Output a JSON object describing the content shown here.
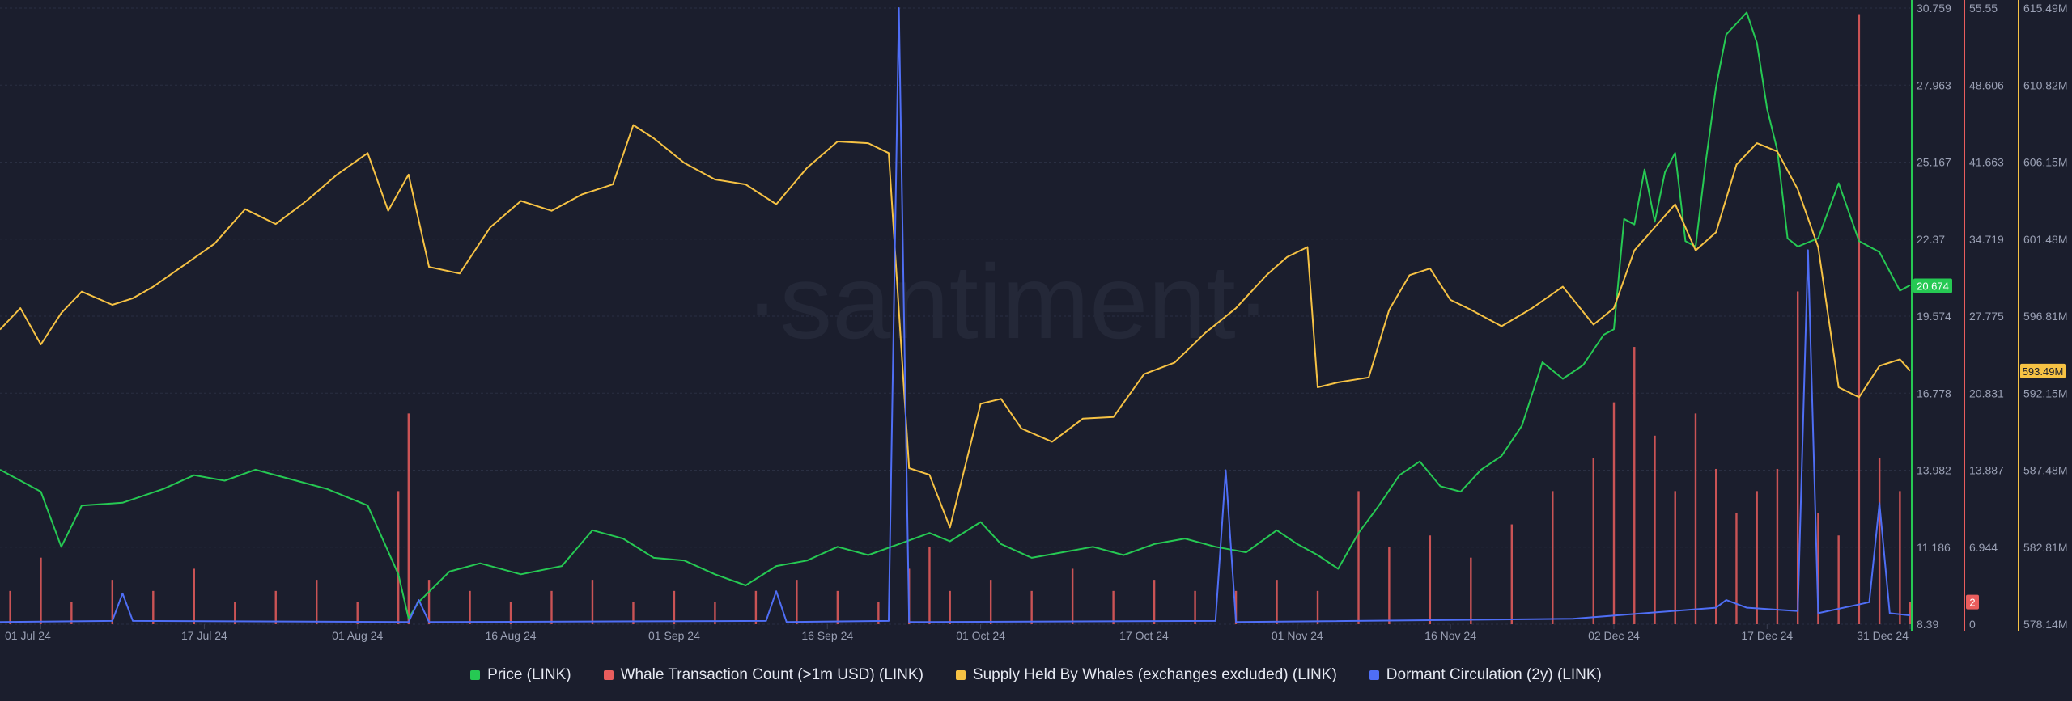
{
  "watermark": "·santiment·",
  "chart_data": {
    "type": "line",
    "x_range": [
      "2024-06-27",
      "2024-12-31"
    ],
    "x_ticks": [
      "01 Jul 24",
      "17 Jul 24",
      "01 Aug 24",
      "16 Aug 24",
      "01 Sep 24",
      "16 Sep 24",
      "01 Oct 24",
      "17 Oct 24",
      "01 Nov 24",
      "16 Nov 24",
      "02 Dec 24",
      "17 Dec 24",
      "31 Dec 24"
    ],
    "grid": true,
    "legend_position": "bottom",
    "axes": {
      "price": {
        "color": "#26c953",
        "range": [
          8.39,
          30.759
        ],
        "ticks": [
          "30.759",
          "27.963",
          "25.167",
          "22.37",
          "19.574",
          "16.778",
          "13.982",
          "11.186",
          "8.39"
        ],
        "current_label": "20.674",
        "current_value": 20.674
      },
      "whale_tx": {
        "color": "#e95d5d",
        "range": [
          0,
          55.55
        ],
        "ticks": [
          "55.55",
          "48.606",
          "41.663",
          "34.719",
          "27.775",
          "20.831",
          "13.887",
          "6.944",
          "0"
        ],
        "current_label": "2",
        "current_value": 2
      },
      "supply": {
        "color": "#f6c244",
        "range": [
          578.14,
          615.49
        ],
        "ticks": [
          "615.49M",
          "610.82M",
          "606.15M",
          "601.48M",
          "596.81M",
          "592.15M",
          "587.48M",
          "582.81M",
          "578.14M"
        ],
        "current_label": "593.49M",
        "current_value": 593.49
      }
    },
    "series": [
      {
        "name": "Price (LINK)",
        "color": "#26c953",
        "axis": "price",
        "style": "line",
        "points": [
          [
            "2024-06-27",
            14.0
          ],
          [
            "2024-07-01",
            13.2
          ],
          [
            "2024-07-03",
            11.2
          ],
          [
            "2024-07-05",
            12.7
          ],
          [
            "2024-07-09",
            12.8
          ],
          [
            "2024-07-13",
            13.3
          ],
          [
            "2024-07-16",
            13.8
          ],
          [
            "2024-07-19",
            13.6
          ],
          [
            "2024-07-22",
            14.0
          ],
          [
            "2024-07-26",
            13.6
          ],
          [
            "2024-07-29",
            13.3
          ],
          [
            "2024-08-02",
            12.7
          ],
          [
            "2024-08-05",
            10.2
          ],
          [
            "2024-08-06",
            8.6
          ],
          [
            "2024-08-07",
            9.2
          ],
          [
            "2024-08-10",
            10.3
          ],
          [
            "2024-08-13",
            10.6
          ],
          [
            "2024-08-17",
            10.2
          ],
          [
            "2024-08-21",
            10.5
          ],
          [
            "2024-08-24",
            11.8
          ],
          [
            "2024-08-27",
            11.5
          ],
          [
            "2024-08-30",
            10.8
          ],
          [
            "2024-09-02",
            10.7
          ],
          [
            "2024-09-05",
            10.2
          ],
          [
            "2024-09-08",
            9.8
          ],
          [
            "2024-09-11",
            10.5
          ],
          [
            "2024-09-14",
            10.7
          ],
          [
            "2024-09-17",
            11.2
          ],
          [
            "2024-09-20",
            10.9
          ],
          [
            "2024-09-23",
            11.3
          ],
          [
            "2024-09-26",
            11.7
          ],
          [
            "2024-09-28",
            11.4
          ],
          [
            "2024-10-01",
            12.1
          ],
          [
            "2024-10-03",
            11.3
          ],
          [
            "2024-10-06",
            10.8
          ],
          [
            "2024-10-09",
            11.0
          ],
          [
            "2024-10-12",
            11.2
          ],
          [
            "2024-10-15",
            10.9
          ],
          [
            "2024-10-18",
            11.3
          ],
          [
            "2024-10-21",
            11.5
          ],
          [
            "2024-10-24",
            11.2
          ],
          [
            "2024-10-27",
            11.0
          ],
          [
            "2024-10-30",
            11.8
          ],
          [
            "2024-11-01",
            11.3
          ],
          [
            "2024-11-03",
            10.9
          ],
          [
            "2024-11-05",
            10.4
          ],
          [
            "2024-11-07",
            11.7
          ],
          [
            "2024-11-09",
            12.7
          ],
          [
            "2024-11-11",
            13.8
          ],
          [
            "2024-11-13",
            14.3
          ],
          [
            "2024-11-15",
            13.4
          ],
          [
            "2024-11-17",
            13.2
          ],
          [
            "2024-11-19",
            14.0
          ],
          [
            "2024-11-21",
            14.5
          ],
          [
            "2024-11-23",
            15.6
          ],
          [
            "2024-11-25",
            17.9
          ],
          [
            "2024-11-27",
            17.3
          ],
          [
            "2024-11-29",
            17.8
          ],
          [
            "2024-12-01",
            18.9
          ],
          [
            "2024-12-02",
            19.1
          ],
          [
            "2024-12-03",
            23.1
          ],
          [
            "2024-12-04",
            22.9
          ],
          [
            "2024-12-05",
            24.9
          ],
          [
            "2024-12-06",
            23.0
          ],
          [
            "2024-12-07",
            24.8
          ],
          [
            "2024-12-08",
            25.5
          ],
          [
            "2024-12-09",
            22.3
          ],
          [
            "2024-12-10",
            22.1
          ],
          [
            "2024-12-11",
            25.2
          ],
          [
            "2024-12-12",
            27.9
          ],
          [
            "2024-12-13",
            29.8
          ],
          [
            "2024-12-14",
            30.2
          ],
          [
            "2024-12-15",
            30.6
          ],
          [
            "2024-12-16",
            29.5
          ],
          [
            "2024-12-17",
            27.1
          ],
          [
            "2024-12-18",
            25.6
          ],
          [
            "2024-12-19",
            22.4
          ],
          [
            "2024-12-20",
            22.1
          ],
          [
            "2024-12-22",
            22.4
          ],
          [
            "2024-12-24",
            24.4
          ],
          [
            "2024-12-26",
            22.3
          ],
          [
            "2024-12-28",
            21.9
          ],
          [
            "2024-12-30",
            20.5
          ],
          [
            "2024-12-31",
            20.7
          ]
        ]
      },
      {
        "name": "Whale Transaction Count (>1m USD) (LINK)",
        "color": "#e95d5d",
        "axis": "whale_tx",
        "style": "bars",
        "points": [
          [
            "2024-06-28",
            3
          ],
          [
            "2024-07-01",
            6
          ],
          [
            "2024-07-04",
            2
          ],
          [
            "2024-07-08",
            4
          ],
          [
            "2024-07-12",
            3
          ],
          [
            "2024-07-16",
            5
          ],
          [
            "2024-07-20",
            2
          ],
          [
            "2024-07-24",
            3
          ],
          [
            "2024-07-28",
            4
          ],
          [
            "2024-08-01",
            2
          ],
          [
            "2024-08-05",
            12
          ],
          [
            "2024-08-06",
            19
          ],
          [
            "2024-08-08",
            4
          ],
          [
            "2024-08-12",
            3
          ],
          [
            "2024-08-16",
            2
          ],
          [
            "2024-08-20",
            3
          ],
          [
            "2024-08-24",
            4
          ],
          [
            "2024-08-28",
            2
          ],
          [
            "2024-09-01",
            3
          ],
          [
            "2024-09-05",
            2
          ],
          [
            "2024-09-09",
            3
          ],
          [
            "2024-09-13",
            4
          ],
          [
            "2024-09-17",
            3
          ],
          [
            "2024-09-21",
            2
          ],
          [
            "2024-09-24",
            5
          ],
          [
            "2024-09-26",
            7
          ],
          [
            "2024-09-28",
            3
          ],
          [
            "2024-10-02",
            4
          ],
          [
            "2024-10-06",
            3
          ],
          [
            "2024-10-10",
            5
          ],
          [
            "2024-10-14",
            3
          ],
          [
            "2024-10-18",
            4
          ],
          [
            "2024-10-22",
            3
          ],
          [
            "2024-10-26",
            3
          ],
          [
            "2024-10-30",
            4
          ],
          [
            "2024-11-03",
            3
          ],
          [
            "2024-11-07",
            12
          ],
          [
            "2024-11-10",
            7
          ],
          [
            "2024-11-14",
            8
          ],
          [
            "2024-11-18",
            6
          ],
          [
            "2024-11-22",
            9
          ],
          [
            "2024-11-26",
            12
          ],
          [
            "2024-11-30",
            15
          ],
          [
            "2024-12-02",
            20
          ],
          [
            "2024-12-04",
            25
          ],
          [
            "2024-12-06",
            17
          ],
          [
            "2024-12-08",
            12
          ],
          [
            "2024-12-10",
            19
          ],
          [
            "2024-12-12",
            14
          ],
          [
            "2024-12-14",
            10
          ],
          [
            "2024-12-16",
            12
          ],
          [
            "2024-12-18",
            14
          ],
          [
            "2024-12-20",
            30
          ],
          [
            "2024-12-22",
            10
          ],
          [
            "2024-12-24",
            8
          ],
          [
            "2024-12-26",
            55
          ],
          [
            "2024-12-28",
            15
          ],
          [
            "2024-12-30",
            12
          ],
          [
            "2024-12-31",
            2
          ]
        ]
      },
      {
        "name": "Supply Held By Whales (exchanges excluded) (LINK)",
        "color": "#f6c244",
        "axis": "supply",
        "style": "line",
        "points": [
          [
            "2024-06-27",
            596.0
          ],
          [
            "2024-06-29",
            597.3
          ],
          [
            "2024-07-01",
            595.1
          ],
          [
            "2024-07-03",
            597.0
          ],
          [
            "2024-07-05",
            598.3
          ],
          [
            "2024-07-08",
            597.5
          ],
          [
            "2024-07-10",
            597.9
          ],
          [
            "2024-07-12",
            598.6
          ],
          [
            "2024-07-15",
            599.9
          ],
          [
            "2024-07-18",
            601.2
          ],
          [
            "2024-07-21",
            603.3
          ],
          [
            "2024-07-24",
            602.4
          ],
          [
            "2024-07-27",
            603.8
          ],
          [
            "2024-07-30",
            605.4
          ],
          [
            "2024-08-02",
            606.7
          ],
          [
            "2024-08-04",
            603.2
          ],
          [
            "2024-08-06",
            605.4
          ],
          [
            "2024-08-08",
            599.8
          ],
          [
            "2024-08-11",
            599.4
          ],
          [
            "2024-08-14",
            602.2
          ],
          [
            "2024-08-17",
            603.8
          ],
          [
            "2024-08-20",
            603.2
          ],
          [
            "2024-08-23",
            604.2
          ],
          [
            "2024-08-26",
            604.8
          ],
          [
            "2024-08-28",
            608.4
          ],
          [
            "2024-08-30",
            607.6
          ],
          [
            "2024-09-02",
            606.1
          ],
          [
            "2024-09-05",
            605.1
          ],
          [
            "2024-09-08",
            604.8
          ],
          [
            "2024-09-11",
            603.6
          ],
          [
            "2024-09-14",
            605.8
          ],
          [
            "2024-09-17",
            607.4
          ],
          [
            "2024-09-20",
            607.3
          ],
          [
            "2024-09-22",
            606.7
          ],
          [
            "2024-09-24",
            587.6
          ],
          [
            "2024-09-26",
            587.2
          ],
          [
            "2024-09-28",
            584.0
          ],
          [
            "2024-10-01",
            591.5
          ],
          [
            "2024-10-03",
            591.8
          ],
          [
            "2024-10-05",
            590.0
          ],
          [
            "2024-10-08",
            589.2
          ],
          [
            "2024-10-11",
            590.6
          ],
          [
            "2024-10-14",
            590.7
          ],
          [
            "2024-10-17",
            593.3
          ],
          [
            "2024-10-20",
            594.0
          ],
          [
            "2024-10-23",
            595.8
          ],
          [
            "2024-10-26",
            597.3
          ],
          [
            "2024-10-29",
            599.3
          ],
          [
            "2024-10-31",
            600.4
          ],
          [
            "2024-11-02",
            601.0
          ],
          [
            "2024-11-03",
            592.5
          ],
          [
            "2024-11-05",
            592.8
          ],
          [
            "2024-11-08",
            593.1
          ],
          [
            "2024-11-10",
            597.2
          ],
          [
            "2024-11-12",
            599.3
          ],
          [
            "2024-11-14",
            599.7
          ],
          [
            "2024-11-16",
            597.8
          ],
          [
            "2024-11-18",
            597.2
          ],
          [
            "2024-11-21",
            596.2
          ],
          [
            "2024-11-24",
            597.3
          ],
          [
            "2024-11-27",
            598.6
          ],
          [
            "2024-11-30",
            596.3
          ],
          [
            "2024-12-02",
            597.3
          ],
          [
            "2024-12-04",
            600.8
          ],
          [
            "2024-12-06",
            602.2
          ],
          [
            "2024-12-08",
            603.6
          ],
          [
            "2024-12-10",
            600.8
          ],
          [
            "2024-12-12",
            601.9
          ],
          [
            "2024-12-14",
            606.0
          ],
          [
            "2024-12-16",
            607.3
          ],
          [
            "2024-12-18",
            606.8
          ],
          [
            "2024-12-20",
            604.5
          ],
          [
            "2024-12-22",
            601.0
          ],
          [
            "2024-12-24",
            592.5
          ],
          [
            "2024-12-26",
            591.9
          ],
          [
            "2024-12-28",
            593.8
          ],
          [
            "2024-12-30",
            594.2
          ],
          [
            "2024-12-31",
            593.5
          ]
        ]
      },
      {
        "name": "Dormant Circulation (2y) (LINK)",
        "color": "#4f6ef5",
        "axis": "dormant",
        "style": "line",
        "points": [
          [
            "2024-06-27",
            0.2
          ],
          [
            "2024-07-08",
            0.3
          ],
          [
            "2024-07-09",
            2.8
          ],
          [
            "2024-07-10",
            0.3
          ],
          [
            "2024-08-06",
            0.2
          ],
          [
            "2024-08-07",
            2.2
          ],
          [
            "2024-08-08",
            0.2
          ],
          [
            "2024-09-10",
            0.3
          ],
          [
            "2024-09-11",
            3.0
          ],
          [
            "2024-09-12",
            0.2
          ],
          [
            "2024-09-22",
            0.3
          ],
          [
            "2024-09-23",
            56.0
          ],
          [
            "2024-09-24",
            0.2
          ],
          [
            "2024-10-24",
            0.3
          ],
          [
            "2024-10-25",
            14.0
          ],
          [
            "2024-10-26",
            0.2
          ],
          [
            "2024-11-28",
            0.5
          ],
          [
            "2024-12-05",
            1.0
          ],
          [
            "2024-12-12",
            1.5
          ],
          [
            "2024-12-13",
            2.2
          ],
          [
            "2024-12-15",
            1.5
          ],
          [
            "2024-12-20",
            1.2
          ],
          [
            "2024-12-21",
            34.0
          ],
          [
            "2024-12-22",
            1.0
          ],
          [
            "2024-12-27",
            2.0
          ],
          [
            "2024-12-28",
            11.0
          ],
          [
            "2024-12-29",
            1.0
          ],
          [
            "2024-12-31",
            0.8
          ]
        ]
      }
    ]
  }
}
